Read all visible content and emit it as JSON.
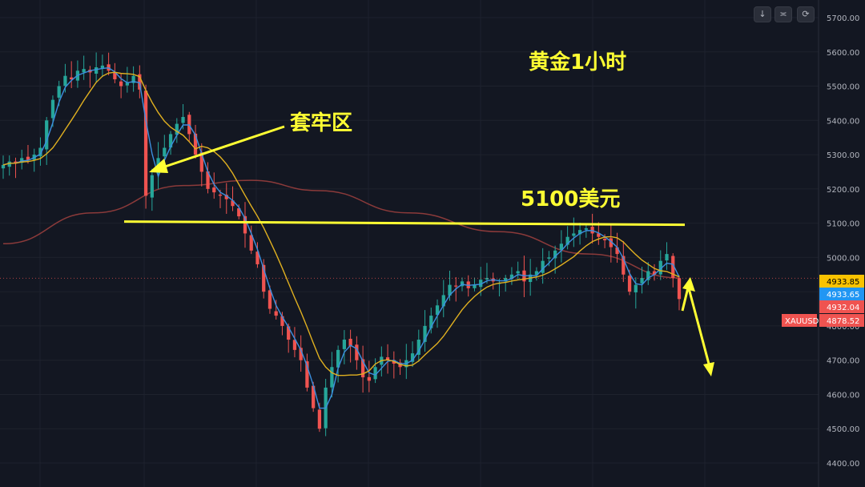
{
  "toolbar": {
    "buttons": [
      {
        "name": "scroll-down-button",
        "icon": "arrow-down-icon",
        "glyph": "↓"
      },
      {
        "name": "collapse-button",
        "icon": "collapse-icon",
        "glyph": "≍"
      },
      {
        "name": "reset-button",
        "icon": "reset-icon",
        "glyph": "⟳"
      }
    ]
  },
  "colors": {
    "background": "#131722",
    "grid": "#1e222d",
    "up": "#26a69a",
    "down": "#ef5350",
    "ma_fast": "#3c8fe0",
    "ma_slow": "#e0b020",
    "ma_long": "#8b3a3a",
    "annotation": "#ffff33",
    "price_axis_bg": "#131722",
    "price_axis_text": "#b2b5be"
  },
  "annotations": {
    "title": "黄金1小时",
    "trap_zone": "套牢区",
    "level_label": "5100美元"
  },
  "chart_data": {
    "type": "candlestick",
    "symbol": "XAUUSD",
    "timeframe": "1H",
    "title": "",
    "xlabel": "",
    "ylabel": "",
    "ylim": [
      4380,
      5735
    ],
    "y_ticks": [
      4400,
      4500,
      4600,
      4700,
      4800,
      4900,
      5000,
      5100,
      5200,
      5300,
      5400,
      5500,
      5600,
      5700
    ],
    "grid": true,
    "price_tags": [
      {
        "label": "4933.85",
        "value": 4933.85,
        "bg": "#f9c300",
        "fg": "#000000"
      },
      {
        "label": "4933.65",
        "value": 4933.65,
        "bg": "#2196f3",
        "fg": "#ffffff"
      },
      {
        "label": "4932.04",
        "value": 4915.2,
        "bg": "#ef5350",
        "fg": "#ffffff"
      },
      {
        "label": "4878.52",
        "value": 4878.52,
        "bg": "#ef5350",
        "fg": "#ffffff",
        "symbol": "XAUUSD"
      }
    ],
    "current_price_line": 4878.52,
    "horizontal_level": 5100,
    "close_path": [
      5270,
      5280,
      5275,
      5290,
      5285,
      5300,
      5320,
      5400,
      5460,
      5500,
      5530,
      5520,
      5545,
      5550,
      5540,
      5555,
      5560,
      5545,
      5520,
      5500,
      5510,
      5530,
      5490,
      5180,
      5240,
      5290,
      5320,
      5360,
      5390,
      5410,
      5360,
      5300,
      5250,
      5200,
      5190,
      5180,
      5170,
      5150,
      5120,
      5070,
      5020,
      4980,
      4900,
      4850,
      4830,
      4800,
      4760,
      4730,
      4700,
      4620,
      4560,
      4500,
      4620,
      4680,
      4730,
      4760,
      4740,
      4700,
      4650,
      4640,
      4680,
      4710,
      4700,
      4690,
      4680,
      4700,
      4720,
      4760,
      4800,
      4830,
      4860,
      4890,
      4920,
      4915,
      4930,
      4910,
      4920,
      4935,
      4940,
      4930,
      4925,
      4940,
      4950,
      4960,
      4930,
      4950,
      4960,
      4990,
      5000,
      5020,
      5040,
      5060,
      5070,
      5080,
      5085,
      5070,
      5060,
      5050,
      5030,
      5010,
      4950,
      4900,
      4920,
      4940,
      4960,
      4950,
      4990,
      5010,
      4940,
      4878.52
    ],
    "series": [
      {
        "name": "MA-fast",
        "color": "#3c8fe0",
        "kind": "ma",
        "period": 3
      },
      {
        "name": "MA-slow",
        "color": "#e0b020",
        "kind": "ma",
        "period": 9
      },
      {
        "name": "MA-long",
        "color": "#8b3a3a",
        "kind": "curve",
        "points": [
          [
            0,
            5040
          ],
          [
            20,
            5130
          ],
          [
            40,
            5210
          ],
          [
            55,
            5225
          ],
          [
            70,
            5195
          ],
          [
            90,
            5130
          ],
          [
            110,
            5075
          ],
          [
            130,
            5010
          ],
          [
            150,
            4940
          ]
        ]
      }
    ],
    "projection": {
      "from": 4950,
      "to": 4660
    }
  }
}
